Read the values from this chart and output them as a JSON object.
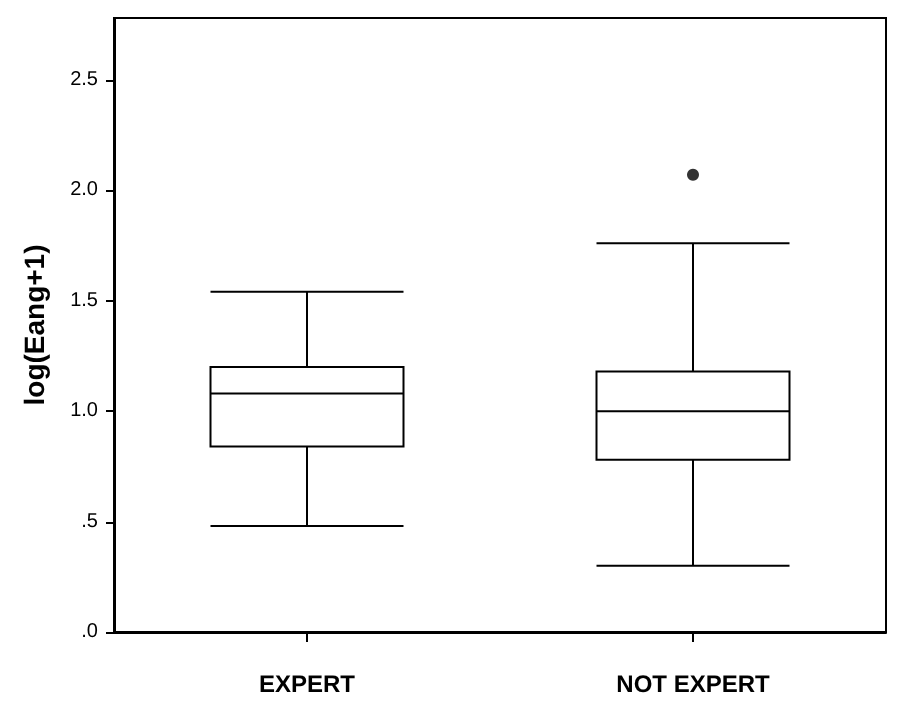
{
  "chart_data": {
    "type": "box",
    "ylabel": "log(Eang+1)",
    "categories": [
      "EXPERT",
      "NOT EXPERT"
    ],
    "boxes": [
      {
        "low": 0.48,
        "q1": 0.84,
        "median": 1.08,
        "q3": 1.2,
        "high": 1.54
      },
      {
        "low": 0.3,
        "q1": 0.78,
        "median": 1.0,
        "q3": 1.18,
        "high": 1.76,
        "outliers": [
          2.07
        ]
      }
    ],
    "ylim": [
      0,
      2.78
    ],
    "yticks": [
      {
        "value": 0,
        "label": ".0"
      },
      {
        "value": 0.5,
        "label": ".5"
      },
      {
        "value": 1,
        "label": "1.0"
      },
      {
        "value": 1.5,
        "label": "1.5"
      },
      {
        "value": 2,
        "label": "2.0"
      },
      {
        "value": 2.5,
        "label": "2.5"
      }
    ],
    "grid": false
  }
}
